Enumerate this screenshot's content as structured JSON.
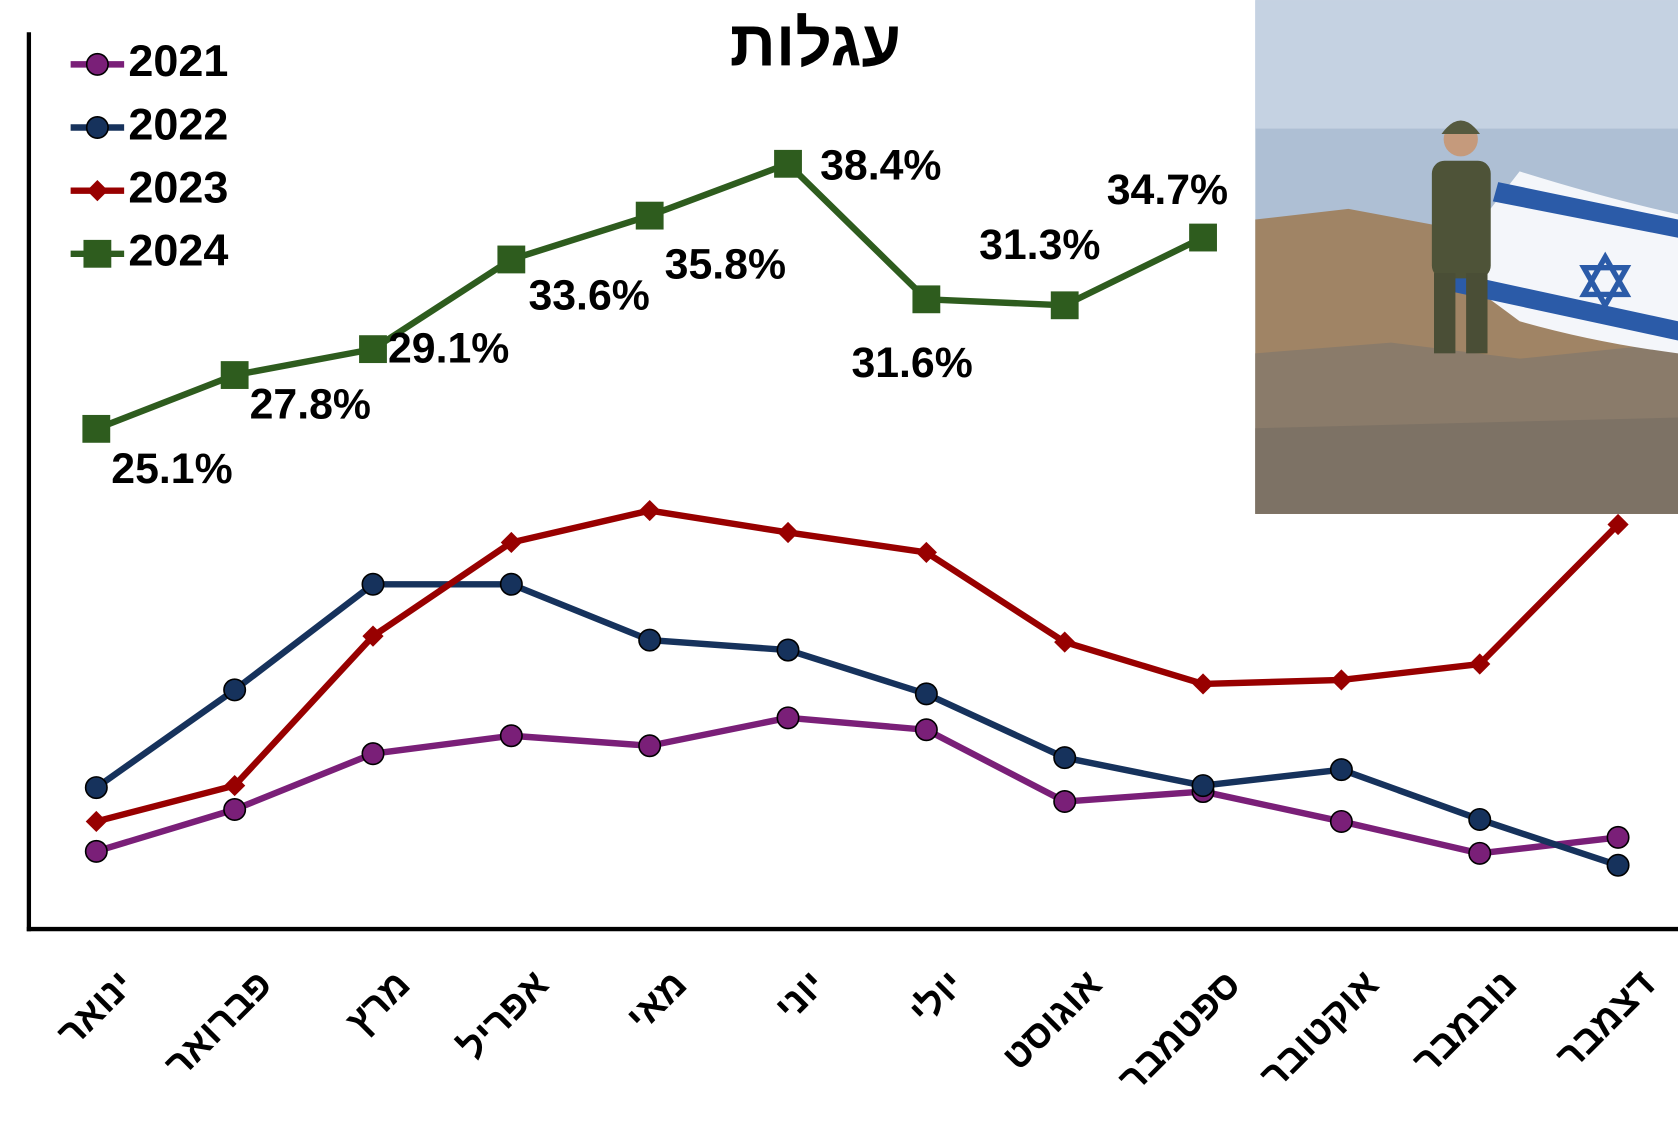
{
  "chart_data": {
    "type": "line",
    "title": "עגלות",
    "categories": [
      "ינואר",
      "פברואר",
      "מרץ",
      "אפריל",
      "מאי",
      "יוני",
      "יולי",
      "אוגוסט",
      "ספטמבר",
      "אוקטובר",
      "נובמבר",
      "דצמבר"
    ],
    "ylim": [
      0,
      45
    ],
    "legend": "top-left",
    "series": [
      {
        "name": "2021",
        "color": "#7a1f78",
        "marker": "circle",
        "values": [
          3.9,
          6.0,
          8.8,
          9.7,
          9.2,
          10.6,
          10.0,
          6.4,
          6.9,
          5.4,
          3.8,
          4.6
        ]
      },
      {
        "name": "2022",
        "color": "#16325c",
        "marker": "circle",
        "values": [
          7.1,
          12.0,
          17.3,
          17.3,
          14.5,
          14.0,
          11.8,
          8.6,
          7.2,
          8.0,
          5.5,
          3.2
        ]
      },
      {
        "name": "2023",
        "color": "#980000",
        "marker": "diamond",
        "values": [
          5.4,
          7.2,
          14.7,
          19.4,
          21.0,
          19.9,
          18.9,
          14.4,
          12.3,
          12.5,
          13.3,
          20.3
        ]
      },
      {
        "name": "2024",
        "color": "#2e5c1e",
        "marker": "square",
        "values": [
          25.1,
          27.8,
          29.1,
          33.6,
          35.8,
          38.4,
          31.6,
          31.3,
          34.7,
          null,
          null,
          null
        ],
        "value_labels": [
          "25.1%",
          "27.8%",
          "29.1%",
          "33.6%",
          "35.8%",
          "38.4%",
          "31.6%",
          "31.3%",
          "34.7%",
          null,
          null,
          null
        ]
      }
    ]
  }
}
